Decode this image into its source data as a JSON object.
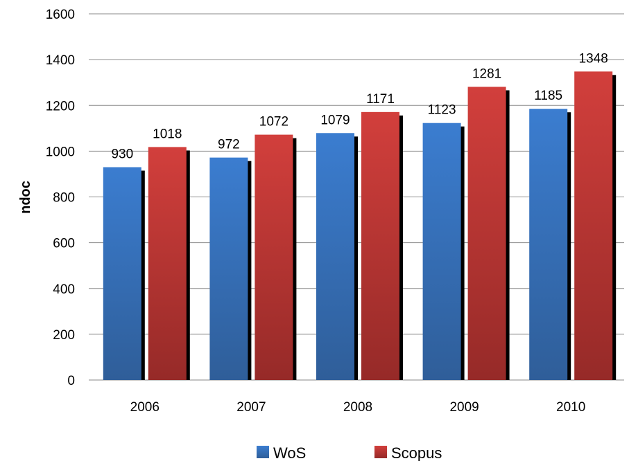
{
  "chart_data": {
    "type": "bar",
    "title": "",
    "xlabel": "",
    "ylabel": "ndoc",
    "ylim": [
      0,
      1600
    ],
    "yticks": [
      0,
      200,
      400,
      600,
      800,
      1000,
      1200,
      1400,
      1600
    ],
    "grid": true,
    "legend_position": "bottom",
    "categories": [
      "2006",
      "2007",
      "2008",
      "2009",
      "2010"
    ],
    "series": [
      {
        "name": "WoS",
        "color": "#3a7cc9",
        "values": [
          930,
          972,
          1079,
          1123,
          1185
        ]
      },
      {
        "name": "Scopus",
        "color": "#c43b38",
        "values": [
          1018,
          1072,
          1171,
          1281,
          1348
        ]
      }
    ]
  }
}
